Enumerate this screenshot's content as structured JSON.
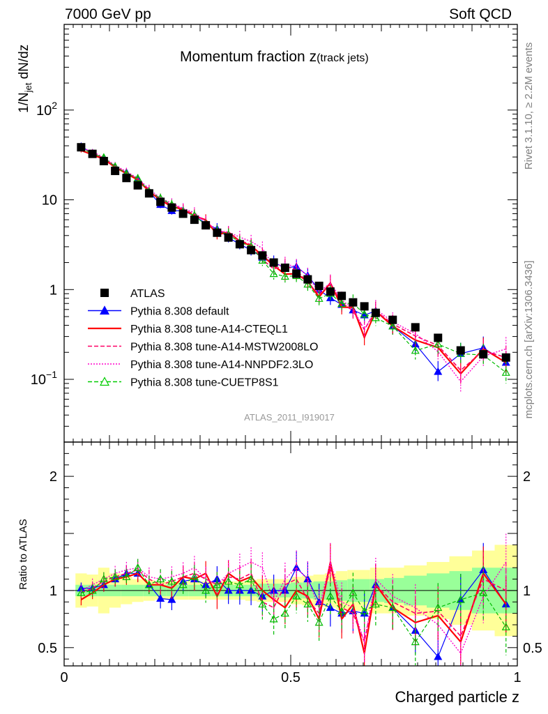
{
  "header": {
    "left": "7000 GeV pp",
    "right": "Soft QCD"
  },
  "side_labels": {
    "rivet": "Rivet 3.1.10, ≥ 2.2M events",
    "mcplots": "mcplots.cern.ch [arXiv:1306.3436]"
  },
  "chart_data": {
    "type": "line",
    "title_main": "Momentum fraction ",
    "title_z": "z",
    "title_sub": "(track jets)",
    "analysis_id": "ATLAS_2011_I919017",
    "xlabel": "Charged particle z",
    "ylabel_main": "1/N",
    "ylabel_sub": "jet",
    "ylabel_tail": " dN/dz",
    "ratio_ylabel": "Ratio to ATLAS",
    "y_scale": "log",
    "xlim": [
      0,
      1
    ],
    "ylim": [
      0.02,
      900
    ],
    "ratio_ylim": [
      0.34,
      2.3
    ],
    "x_tick_labels": [
      "0",
      "0.5",
      "1"
    ],
    "y_tick_labels": [
      {
        "value": 100,
        "base": "10",
        "exp": "2"
      },
      {
        "value": 10,
        "base": "10",
        "exp": ""
      },
      {
        "value": 1,
        "base": "1",
        "exp": ""
      },
      {
        "value": 0.1,
        "base": "10",
        "exp": "−1"
      }
    ],
    "ratio_tick_labels": [
      "0.5",
      "1",
      "2"
    ],
    "legend": [
      {
        "label": "ATLAS",
        "color": "#000000",
        "marker": "square",
        "line": "none"
      },
      {
        "label": "Pythia 8.308 default",
        "color": "#0000ff",
        "marker": "triangle",
        "line": "solid"
      },
      {
        "label": "Pythia 8.308 tune-A14-CTEQL1",
        "color": "#ff0000",
        "marker": "none",
        "line": "solid-thick"
      },
      {
        "label": "Pythia 8.308 tune-A14-MSTW2008LO",
        "color": "#ff0066",
        "marker": "none",
        "line": "dashed"
      },
      {
        "label": "Pythia 8.308 tune-A14-NNPDF2.3LO",
        "color": "#ff00cc",
        "marker": "none",
        "line": "dotted"
      },
      {
        "label": "Pythia 8.308 tune-CUETP8S1",
        "color": "#00cc00",
        "marker": "open-triangle",
        "line": "dashed"
      }
    ],
    "x": [
      0.0375,
      0.0625,
      0.0875,
      0.1125,
      0.1375,
      0.1625,
      0.1875,
      0.2125,
      0.2375,
      0.2625,
      0.2875,
      0.3125,
      0.3375,
      0.3625,
      0.3875,
      0.4125,
      0.4375,
      0.4625,
      0.4875,
      0.5125,
      0.5375,
      0.5625,
      0.5875,
      0.6125,
      0.6375,
      0.6625,
      0.6875,
      0.725,
      0.775,
      0.825,
      0.875,
      0.925,
      0.975
    ],
    "data_values": [
      38.5,
      32.5,
      27.0,
      21.0,
      17.5,
      14.5,
      11.8,
      9.5,
      8.2,
      7.0,
      6.0,
      5.2,
      4.3,
      3.8,
      3.2,
      2.75,
      2.4,
      2.0,
      1.75,
      1.5,
      1.3,
      1.1,
      0.95,
      0.85,
      0.72,
      0.65,
      0.55,
      0.46,
      0.38,
      0.29,
      0.21,
      0.19,
      0.175
    ],
    "band_inner": [
      0.05,
      0.05,
      0.05,
      0.05,
      0.05,
      0.05,
      0.05,
      0.05,
      0.05,
      0.05,
      0.05,
      0.05,
      0.05,
      0.05,
      0.05,
      0.05,
      0.06,
      0.06,
      0.06,
      0.07,
      0.07,
      0.08,
      0.08,
      0.09,
      0.1,
      0.1,
      0.1,
      0.11,
      0.13,
      0.15,
      0.17,
      0.2,
      0.2
    ],
    "band_outer": [
      0.15,
      0.14,
      0.2,
      0.15,
      0.12,
      0.1,
      0.09,
      0.08,
      0.08,
      0.08,
      0.08,
      0.08,
      0.08,
      0.08,
      0.08,
      0.09,
      0.1,
      0.1,
      0.1,
      0.12,
      0.13,
      0.14,
      0.15,
      0.17,
      0.18,
      0.18,
      0.2,
      0.2,
      0.22,
      0.25,
      0.3,
      0.35,
      0.4
    ],
    "series": [
      {
        "name": "Pythia 8.308 default",
        "color": "#0000ff",
        "dash": "",
        "width": 1.2,
        "marker": "triangle",
        "ratio": [
          1.02,
          1.02,
          1.05,
          1.1,
          1.15,
          1.15,
          1.05,
          0.93,
          0.92,
          1.08,
          1.1,
          1.05,
          1.1,
          1.0,
          1.0,
          1.0,
          0.95,
          1.0,
          1.0,
          1.2,
          1.1,
          0.9,
          0.85,
          0.8,
          0.82,
          0.8,
          1.05,
          0.85,
          0.65,
          0.42,
          0.92,
          1.18,
          0.88
        ]
      },
      {
        "name": "Pythia 8.308 tune-A14-CTEQL1",
        "color": "#ff0000",
        "dash": "",
        "width": 2.2,
        "marker": "none",
        "ratio": [
          0.92,
          0.98,
          1.05,
          1.1,
          1.12,
          1.15,
          1.05,
          1.05,
          1.02,
          1.12,
          1.1,
          1.15,
          0.95,
          1.15,
          1.08,
          1.12,
          1.0,
          0.92,
          0.85,
          1.0,
          0.95,
          0.75,
          1.25,
          0.75,
          0.88,
          0.45,
          1.05,
          0.85,
          0.72,
          0.78,
          0.55,
          1.15,
          0.88
        ]
      },
      {
        "name": "Pythia 8.308 tune-A14-MSTW2008LO",
        "color": "#ff0066",
        "dash": "6,3",
        "width": 1.6,
        "marker": "none",
        "ratio": [
          0.98,
          1.02,
          1.08,
          1.12,
          1.15,
          1.18,
          1.1,
          1.05,
          1.08,
          1.12,
          1.15,
          1.1,
          1.05,
          1.12,
          1.1,
          1.15,
          0.9,
          0.85,
          1.05,
          1.1,
          0.92,
          0.8,
          1.2,
          0.85,
          0.8,
          0.55,
          1.05,
          0.9,
          0.8,
          0.82,
          0.6,
          1.1,
          1.0
        ]
      },
      {
        "name": "Pythia 8.308 tune-A14-NNPDF2.3LO",
        "color": "#ff00cc",
        "dash": "2,2",
        "width": 1.4,
        "marker": "none",
        "ratio": [
          1.0,
          1.05,
          1.1,
          1.15,
          1.18,
          1.2,
          1.12,
          1.1,
          1.12,
          1.15,
          1.2,
          1.1,
          1.05,
          1.15,
          1.2,
          1.25,
          1.2,
          0.9,
          1.1,
          1.2,
          1.1,
          0.85,
          1.25,
          0.9,
          0.85,
          0.55,
          1.1,
          0.95,
          0.85,
          0.7,
          0.45,
          0.95,
          1.25
        ]
      },
      {
        "name": "Pythia 8.308 tune-CUETP8S1",
        "color": "#00bb00",
        "dash": "5,3",
        "width": 1.2,
        "marker": "opentriangle",
        "ratio": [
          0.98,
          1.0,
          1.1,
          1.12,
          1.12,
          1.2,
          1.05,
          1.1,
          1.08,
          1.05,
          1.12,
          1.0,
          1.05,
          1.08,
          1.05,
          1.1,
          0.88,
          0.75,
          0.8,
          0.95,
          0.88,
          0.72,
          0.95,
          0.82,
          0.98,
          0.82,
          0.88,
          0.85,
          0.55,
          0.85,
          0.92,
          0.98,
          0.68
        ]
      }
    ]
  }
}
